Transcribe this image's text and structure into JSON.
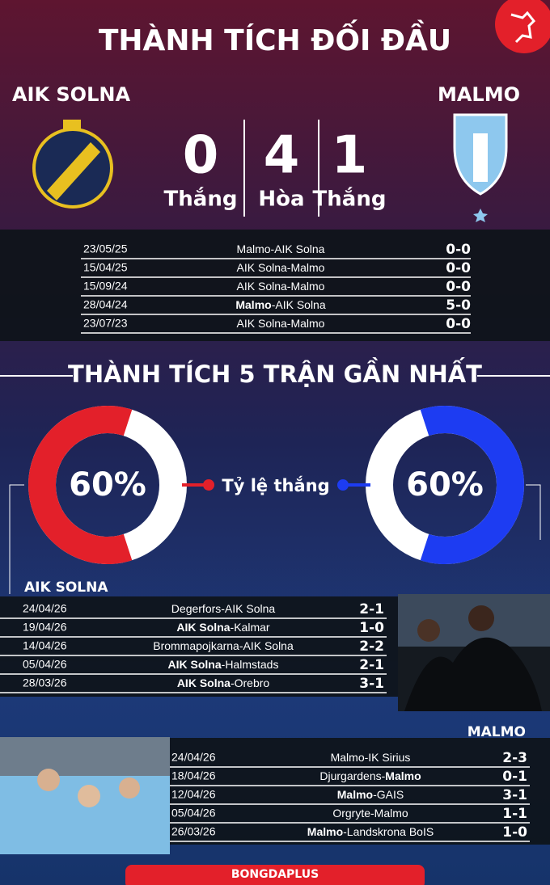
{
  "header": {
    "title": "THÀNH TÍCH ĐỐI ĐẦU",
    "home_team": "AIK SOLNA",
    "away_team": "MALMO"
  },
  "head_to_head": {
    "summary": [
      {
        "value": 0,
        "label": "Thắng"
      },
      {
        "value": 4,
        "label": "Hòa"
      },
      {
        "value": 1,
        "label": "Thắng"
      }
    ],
    "matches": [
      {
        "date": "23/05/25",
        "match": [
          {
            "text": "Malmo-AIK Solna",
            "bold": false
          }
        ],
        "score": "0-0"
      },
      {
        "date": "15/04/25",
        "match": [
          {
            "text": "AIK Solna-Malmo",
            "bold": false
          }
        ],
        "score": "0-0"
      },
      {
        "date": "15/09/24",
        "match": [
          {
            "text": "AIK Solna-Malmo",
            "bold": false
          }
        ],
        "score": "0-0"
      },
      {
        "date": "28/04/24",
        "match": [
          {
            "text": "Malmo",
            "bold": true
          },
          {
            "text": "-AIK Solna",
            "bold": false
          }
        ],
        "score": "5-0"
      },
      {
        "date": "23/07/23",
        "match": [
          {
            "text": "AIK Solna-Malmo",
            "bold": false
          }
        ],
        "score": "0-0"
      }
    ]
  },
  "recent_form": {
    "title": "THÀNH TÍCH 5 TRẬN GẦN NHẤT",
    "win_rate": {
      "label": "Tỷ lệ thắng",
      "home": {
        "value": 60,
        "value_label": "60%",
        "color": "#e3202a"
      },
      "away": {
        "value": 60,
        "value_label": "60%",
        "color": "#1d3cf2"
      }
    },
    "home": {
      "team": "AIK SOLNA",
      "matches": [
        {
          "date": "24/04/26",
          "match": [
            {
              "text": "Degerfors-AIK Solna",
              "bold": false
            }
          ],
          "score": "2-1"
        },
        {
          "date": "19/04/26",
          "match": [
            {
              "text": "AIK Solna",
              "bold": true
            },
            {
              "text": "-Kalmar",
              "bold": false
            }
          ],
          "score": "1-0"
        },
        {
          "date": "14/04/26",
          "match": [
            {
              "text": "Brommapojkarna-AIK Solna",
              "bold": false
            }
          ],
          "score": "2-2"
        },
        {
          "date": "05/04/26",
          "match": [
            {
              "text": "AIK Solna",
              "bold": true
            },
            {
              "text": "-Halmstads",
              "bold": false
            }
          ],
          "score": "2-1"
        },
        {
          "date": "28/03/26",
          "match": [
            {
              "text": "AIK Solna",
              "bold": true
            },
            {
              "text": "-Orebro",
              "bold": false
            }
          ],
          "score": "3-1"
        }
      ]
    },
    "away": {
      "team": "MALMO",
      "matches": [
        {
          "date": "24/04/26",
          "match": [
            {
              "text": "Malmo-IK Sirius",
              "bold": false
            }
          ],
          "score": "2-3"
        },
        {
          "date": "18/04/26",
          "match": [
            {
              "text": "Djurgardens-",
              "bold": false
            },
            {
              "text": "Malmo",
              "bold": true
            }
          ],
          "score": "0-1"
        },
        {
          "date": "12/04/26",
          "match": [
            {
              "text": "Malmo",
              "bold": true
            },
            {
              "text": "-GAIS",
              "bold": false
            }
          ],
          "score": "3-1"
        },
        {
          "date": "05/04/26",
          "match": [
            {
              "text": "Orgryte-Malmo",
              "bold": false
            }
          ],
          "score": "1-1"
        },
        {
          "date": "26/03/26",
          "match": [
            {
              "text": "Malmo",
              "bold": true
            },
            {
              "text": "-Landskrona BoIS",
              "bold": false
            }
          ],
          "score": "1-0"
        }
      ]
    }
  },
  "footer": {
    "brand": "BONGDAPLUS"
  }
}
